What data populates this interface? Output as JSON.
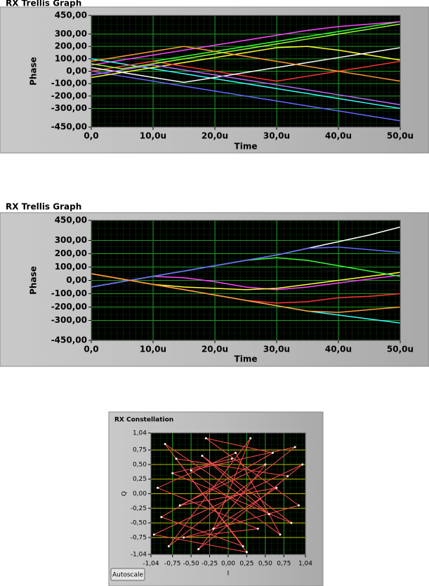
{
  "chart_data": [
    {
      "type": "line",
      "title": "RX Trellis Graph",
      "x_label": "Time",
      "y_label": "Phase",
      "x": [
        0,
        5,
        10,
        15,
        20,
        25,
        30,
        35,
        40,
        45,
        50
      ],
      "xlim": [
        0,
        50
      ],
      "xticks": [
        {
          "value": 0,
          "label": "0,0"
        },
        {
          "value": 10,
          "label": "10,0u"
        },
        {
          "value": 20,
          "label": "20,0u"
        },
        {
          "value": 30,
          "label": "30,0u"
        },
        {
          "value": 40,
          "label": "40,0u"
        },
        {
          "value": 50,
          "label": "50,0u"
        }
      ],
      "ylim": [
        -450,
        450
      ],
      "yticks": [
        {
          "value": 450,
          "label": "450,00"
        },
        {
          "value": 300,
          "label": "300,00"
        },
        {
          "value": 200,
          "label": "200,00"
        },
        {
          "value": 100,
          "label": "100,00"
        },
        {
          "value": 0,
          "label": "0,00"
        },
        {
          "value": -100,
          "label": "-100,00"
        },
        {
          "value": -200,
          "label": "-200,00"
        },
        {
          "value": -300,
          "label": "-300,00"
        },
        {
          "value": -450,
          "label": "-450,00"
        }
      ],
      "grid": true,
      "series": [
        {
          "color": "#33ff33",
          "values": [
            0,
            40,
            80,
            120,
            160,
            200,
            240,
            280,
            320,
            360,
            400
          ]
        },
        {
          "color": "#6666ff",
          "values": [
            0,
            -40,
            -80,
            -120,
            -160,
            -200,
            -240,
            -280,
            -320,
            -360,
            -400
          ]
        },
        {
          "color": "#ff44ff",
          "values": [
            50,
            90,
            130,
            170,
            210,
            250,
            290,
            330,
            360,
            380,
            400
          ]
        },
        {
          "color": "#33ffff",
          "values": [
            100,
            60,
            20,
            -20,
            -60,
            -100,
            -140,
            -180,
            -220,
            -260,
            -300
          ]
        },
        {
          "color": "#ffff33",
          "values": [
            -50,
            -10,
            30,
            70,
            110,
            150,
            190,
            200,
            170,
            130,
            90
          ]
        },
        {
          "color": "#ff3333",
          "values": [
            0,
            40,
            80,
            40,
            0,
            -40,
            -80,
            -40,
            0,
            40,
            80
          ]
        },
        {
          "color": "#ffffff",
          "values": [
            30,
            -10,
            -50,
            -90,
            -50,
            -10,
            30,
            70,
            110,
            150,
            190
          ]
        },
        {
          "color": "#ff9933",
          "values": [
            80,
            120,
            160,
            200,
            160,
            120,
            80,
            40,
            0,
            -40,
            -80
          ]
        },
        {
          "color": "#bb66ff",
          "values": [
            -30,
            10,
            50,
            10,
            -30,
            -70,
            -110,
            -150,
            -190,
            -230,
            -270
          ]
        },
        {
          "color": "#99ff33",
          "values": [
            60,
            20,
            60,
            100,
            140,
            180,
            220,
            260,
            300,
            340,
            380
          ]
        }
      ]
    },
    {
      "type": "line",
      "title": "RX Trellis Graph",
      "x_label": "Time",
      "y_label": "Phase",
      "x": [
        0,
        5,
        10,
        15,
        20,
        25,
        30,
        35,
        40,
        45,
        50
      ],
      "xlim": [
        0,
        50
      ],
      "xticks": [
        {
          "value": 0,
          "label": "0,0"
        },
        {
          "value": 10,
          "label": "10,0u"
        },
        {
          "value": 20,
          "label": "20,0u"
        },
        {
          "value": 30,
          "label": "30,0u"
        },
        {
          "value": 40,
          "label": "40,0u"
        },
        {
          "value": 50,
          "label": "50,0u"
        }
      ],
      "ylim": [
        -450,
        450
      ],
      "yticks": [
        {
          "value": 450,
          "label": "450,00"
        },
        {
          "value": 300,
          "label": "300,00"
        },
        {
          "value": 200,
          "label": "200,00"
        },
        {
          "value": 100,
          "label": "100,00"
        },
        {
          "value": 0,
          "label": "0,00"
        },
        {
          "value": -100,
          "label": "-100,00"
        },
        {
          "value": -200,
          "label": "-200,00"
        },
        {
          "value": -300,
          "label": "-300,00"
        },
        {
          "value": -450,
          "label": "-450,00"
        }
      ],
      "grid": true,
      "series": [
        {
          "color": "#ffffff",
          "values": [
            -50,
            -10,
            30,
            70,
            110,
            150,
            190,
            240,
            290,
            340,
            400
          ]
        },
        {
          "color": "#33ffff",
          "values": [
            50,
            10,
            -30,
            -70,
            -110,
            -150,
            -190,
            -230,
            -260,
            -290,
            -320
          ]
        },
        {
          "color": "#ff44ff",
          "values": [
            -50,
            -10,
            30,
            20,
            -10,
            -50,
            -70,
            -50,
            -20,
            10,
            40
          ]
        },
        {
          "color": "#ffff33",
          "values": [
            50,
            10,
            -30,
            -50,
            -60,
            -70,
            -60,
            -30,
            0,
            30,
            60
          ]
        },
        {
          "color": "#33ff33",
          "values": [
            -50,
            -10,
            30,
            70,
            110,
            150,
            170,
            150,
            110,
            70,
            30
          ]
        },
        {
          "color": "#ff3333",
          "values": [
            50,
            10,
            -30,
            -70,
            -110,
            -150,
            -170,
            -160,
            -130,
            -120,
            -100
          ]
        },
        {
          "color": "#6666ff",
          "values": [
            -50,
            -10,
            30,
            70,
            110,
            150,
            190,
            240,
            250,
            230,
            210
          ]
        },
        {
          "color": "#ff9933",
          "values": [
            50,
            10,
            -30,
            -70,
            -110,
            -150,
            -190,
            -230,
            -240,
            -220,
            -200
          ]
        }
      ]
    },
    {
      "type": "scatter",
      "title": "RX Constellation",
      "x_label": "I",
      "y_label": "Q",
      "button": "Autoscale",
      "color": "#ff4d4d",
      "x": [
        0.8,
        -0.7,
        0.2,
        -0.9,
        0.6,
        -0.3,
        0.95,
        -0.6,
        0.4,
        -0.95,
        0.1,
        0.7,
        -0.5,
        0.9,
        -0.8,
        0.3,
        -0.2,
        0.65,
        -0.65,
        0.5,
        -0.4,
        1.0,
        -1.0,
        0.25,
        -0.85,
        0.55,
        -0.35,
        0.85,
        -0.75,
        0.05
      ],
      "y": [
        0.3,
        0.6,
        -0.9,
        -0.4,
        0.7,
        0.95,
        -0.2,
        -0.75,
        -0.6,
        0.1,
        0.7,
        -0.7,
        0.4,
        0.8,
        -0.9,
        0.95,
        -0.6,
        0.1,
        -0.2,
        0.5,
        -0.95,
        0.5,
        -0.7,
        -1.0,
        0.85,
        -0.35,
        0.65,
        -0.5,
        0.35,
        0.6
      ],
      "xlim": [
        -1.04,
        1.04
      ],
      "xticks": [
        {
          "value": -1.04,
          "label": "-1,04"
        },
        {
          "value": -0.75,
          "label": "-0,75"
        },
        {
          "value": -0.5,
          "label": "-0,50"
        },
        {
          "value": -0.25,
          "label": "-0,25"
        },
        {
          "value": 0,
          "label": "0,00"
        },
        {
          "value": 0.25,
          "label": "0,25"
        },
        {
          "value": 0.5,
          "label": "0,50"
        },
        {
          "value": 0.75,
          "label": "0,75"
        },
        {
          "value": 1.04,
          "label": "1,04"
        }
      ],
      "ylim": [
        -1.04,
        1.04
      ],
      "yticks": [
        {
          "value": 1.04,
          "label": "1,04"
        },
        {
          "value": 0.75,
          "label": "0,75"
        },
        {
          "value": 0.5,
          "label": "0,50"
        },
        {
          "value": 0.25,
          "label": "0,25"
        },
        {
          "value": 0,
          "label": "0,00"
        },
        {
          "value": -0.25,
          "label": "-0,25"
        },
        {
          "value": -0.5,
          "label": "-0,50"
        },
        {
          "value": -0.75,
          "label": "-0,75"
        },
        {
          "value": -1.04,
          "label": "-1,04"
        }
      ],
      "grid": true
    }
  ]
}
